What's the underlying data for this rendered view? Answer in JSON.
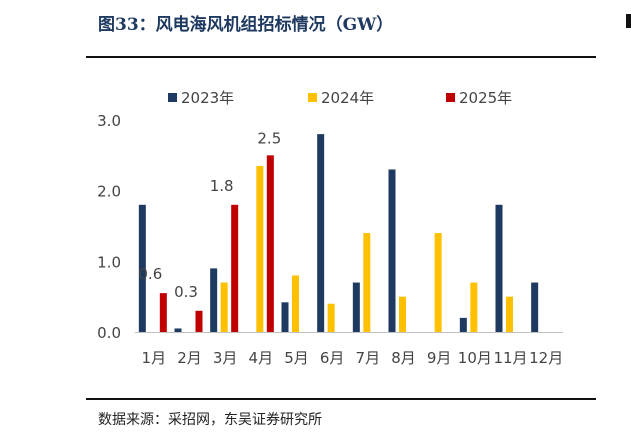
{
  "title": "图33：风电海风机组招标情况（GW）",
  "source": "数据来源：采招网，东吴证券研究所",
  "chart_data": {
    "type": "bar",
    "categories": [
      "1月",
      "2月",
      "3月",
      "4月",
      "5月",
      "6月",
      "7月",
      "8月",
      "9月",
      "10月",
      "11月",
      "12月"
    ],
    "series": [
      {
        "name": "2023年",
        "color": "#1f3a60",
        "values": [
          1.8,
          0.05,
          0.9,
          null,
          0.42,
          2.8,
          0.7,
          2.3,
          null,
          0.2,
          1.8,
          0.7
        ]
      },
      {
        "name": "2024年",
        "color": "#ffc000",
        "values": [
          null,
          null,
          0.7,
          2.35,
          0.8,
          0.4,
          1.4,
          0.5,
          1.4,
          0.7,
          0.5,
          null
        ]
      },
      {
        "name": "2025年",
        "color": "#c00000",
        "values": [
          0.55,
          0.3,
          1.8,
          2.5,
          null,
          null,
          null,
          null,
          null,
          null,
          null,
          null
        ]
      }
    ],
    "data_labels": [
      {
        "series": "2025年",
        "category": "1月",
        "text": "0.6"
      },
      {
        "series": "2025年",
        "category": "2月",
        "text": "0.3"
      },
      {
        "series": "2025年",
        "category": "3月",
        "text": "1.8"
      },
      {
        "series": "2025年",
        "category": "4月",
        "text": "2.5"
      }
    ],
    "yticks": [
      "0.0",
      "1.0",
      "2.0",
      "3.0"
    ],
    "ylim": [
      0,
      3.0
    ],
    "grid": false,
    "legend_position": "top"
  }
}
